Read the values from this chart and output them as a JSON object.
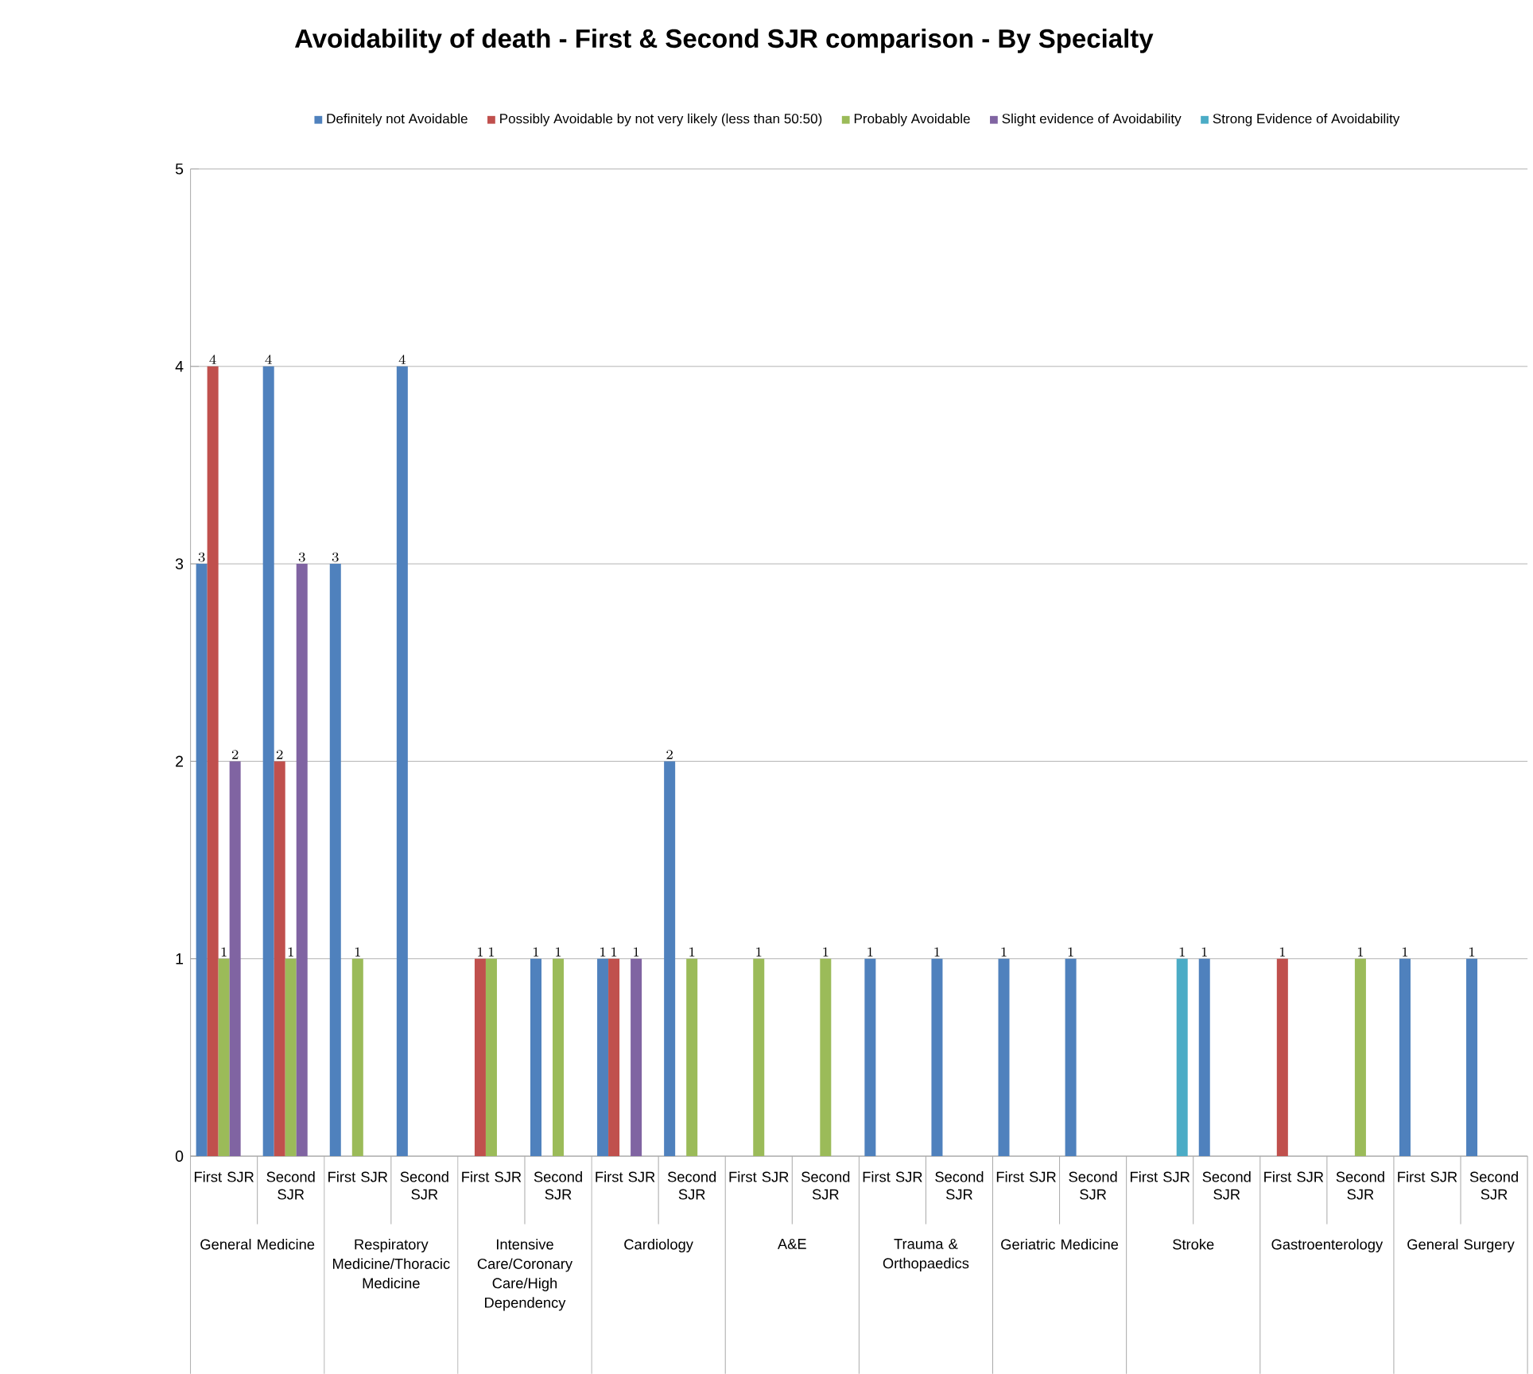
{
  "chart_data": {
    "type": "bar",
    "title": "Avoidability of death - First & Second SJR comparison - By Specialty",
    "categories": [
      "First SJR",
      "Second SJR",
      "First SJR",
      "Second SJR",
      "First SJR",
      "Second SJR",
      "First SJR",
      "Second SJR",
      "First SJR",
      "Second SJR",
      "First SJR",
      "Second SJR",
      "First SJR",
      "Second SJR",
      "First SJR",
      "Second SJR",
      "First SJR",
      "Second SJR",
      "First SJR",
      "Second SJR"
    ],
    "series": [
      {
        "name": "Definitely not Avoidable",
        "color": "#4f81bd",
        "values": [
          3,
          4,
          3,
          4,
          null,
          1,
          1,
          2,
          null,
          null,
          1,
          1,
          1,
          1,
          null,
          1,
          null,
          null,
          1,
          1
        ]
      },
      {
        "name": "Possibly Avoidable by not very likely (less than 50:50)",
        "color": "#c0504d",
        "values": [
          4,
          2,
          null,
          null,
          1,
          null,
          1,
          null,
          null,
          null,
          null,
          null,
          null,
          null,
          null,
          null,
          1,
          null,
          null,
          null
        ]
      },
      {
        "name": "Probably Avoidable",
        "color": "#9bbb59",
        "values": [
          1,
          1,
          1,
          null,
          1,
          1,
          null,
          1,
          1,
          1,
          null,
          null,
          null,
          null,
          null,
          null,
          null,
          1,
          null,
          null
        ]
      },
      {
        "name": "Slight evidence of Avoidability",
        "color": "#8064a2",
        "values": [
          2,
          3,
          null,
          null,
          null,
          null,
          1,
          null,
          null,
          null,
          null,
          null,
          null,
          null,
          null,
          null,
          null,
          null,
          null,
          null
        ]
      },
      {
        "name": "Strong Evidence of Avoidability",
        "color": "#4bacc6",
        "values": [
          null,
          null,
          null,
          null,
          null,
          null,
          null,
          null,
          null,
          null,
          null,
          null,
          null,
          null,
          1,
          null,
          null,
          null,
          null,
          null
        ]
      }
    ],
    "annotations": [
      "General Medicine",
      "Respiratory Medicine/Thoracic Medicine",
      "Intensive Care/Coronary Care/High Dependency",
      "Cardiology",
      "A&E",
      "Trauma & Orthopaedics",
      "Geriatric Medicine",
      "Stroke",
      "Gastroenterology",
      "General Surgery"
    ],
    "ylim": [
      0,
      5
    ],
    "yticks": [
      0,
      1,
      2,
      3,
      4,
      5
    ],
    "grid": "y",
    "legend": "top",
    "data_labels": true
  }
}
